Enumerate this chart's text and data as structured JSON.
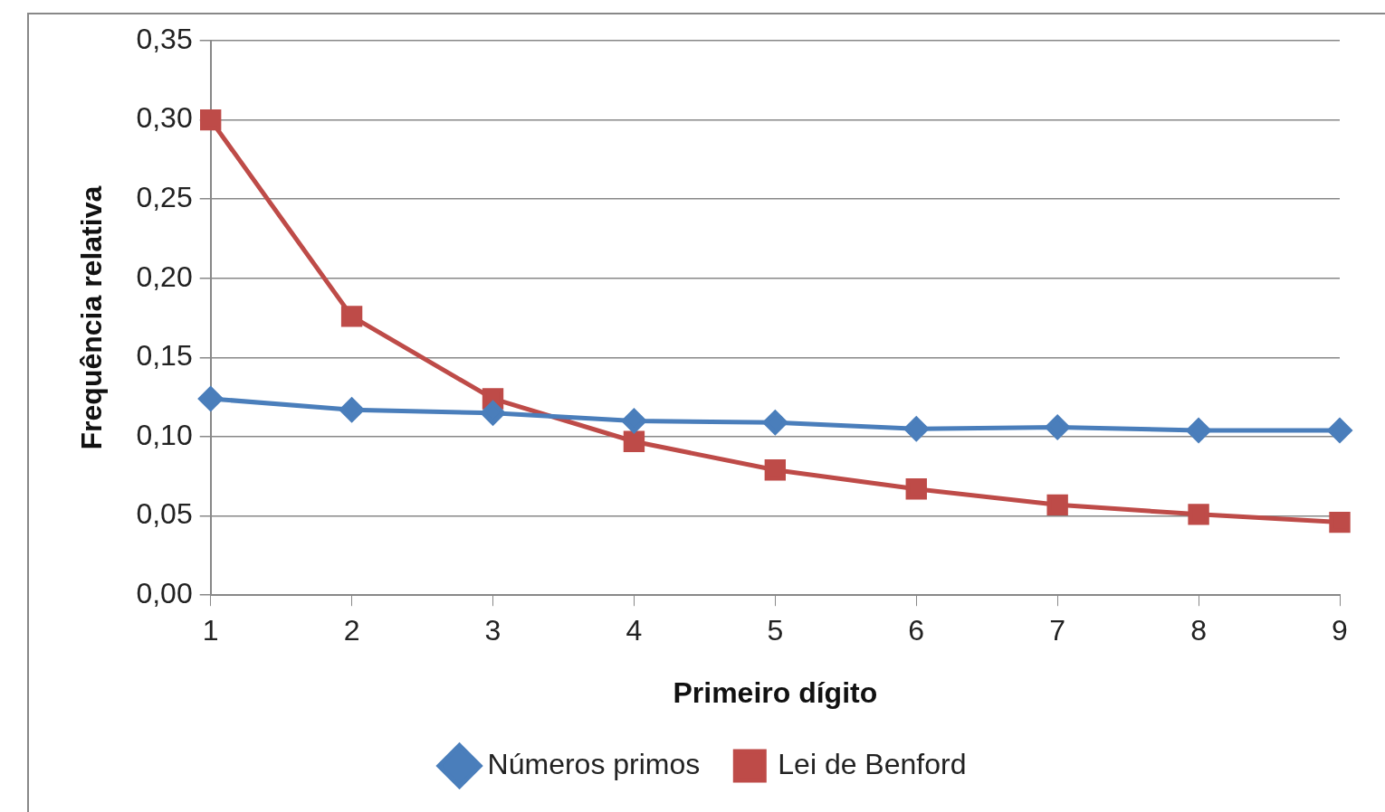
{
  "chart_data": {
    "type": "line",
    "xlabel": "Primeiro dígito",
    "ylabel": "Frequência relativa",
    "categories": [
      "1",
      "2",
      "3",
      "4",
      "5",
      "6",
      "7",
      "8",
      "9"
    ],
    "series": [
      {
        "name": "Números primos",
        "color": "#4a7ebb",
        "marker": "diamond",
        "values": [
          0.124,
          0.117,
          0.115,
          0.11,
          0.109,
          0.105,
          0.106,
          0.104,
          0.104
        ]
      },
      {
        "name": "Lei de Benford",
        "color": "#be4b48",
        "marker": "square",
        "values": [
          0.3,
          0.176,
          0.124,
          0.097,
          0.079,
          0.067,
          0.057,
          0.051,
          0.046
        ]
      }
    ],
    "ylim": [
      0,
      0.35
    ],
    "yticks": [
      {
        "value": 0,
        "label": "0,00"
      },
      {
        "value": 0.05,
        "label": "0,05"
      },
      {
        "value": 0.1,
        "label": "0,10"
      },
      {
        "value": 0.15,
        "label": "0,15"
      },
      {
        "value": 0.2,
        "label": "0,20"
      },
      {
        "value": 0.25,
        "label": "0,25"
      },
      {
        "value": 0.3,
        "label": "0,30"
      },
      {
        "value": 0.35,
        "label": "0,35"
      }
    ],
    "grid": "y",
    "legend": "bottom",
    "line_style": "solid"
  }
}
